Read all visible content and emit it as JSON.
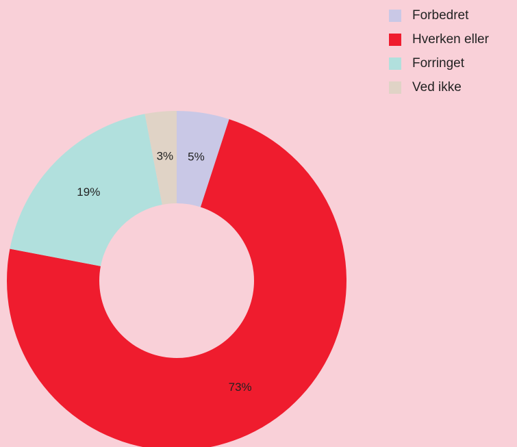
{
  "chart_data": {
    "type": "donut",
    "categories": [
      "Forbedret",
      "Hverken eller",
      "Forringet",
      "Ved ikke"
    ],
    "values": [
      5,
      73,
      19,
      3
    ],
    "value_labels": [
      "5%",
      "73%",
      "19%",
      "3%"
    ],
    "colors": [
      "#c9c8e6",
      "#ef1c2e",
      "#b1e0dd",
      "#e0d3c6"
    ],
    "legend": "top-right"
  }
}
